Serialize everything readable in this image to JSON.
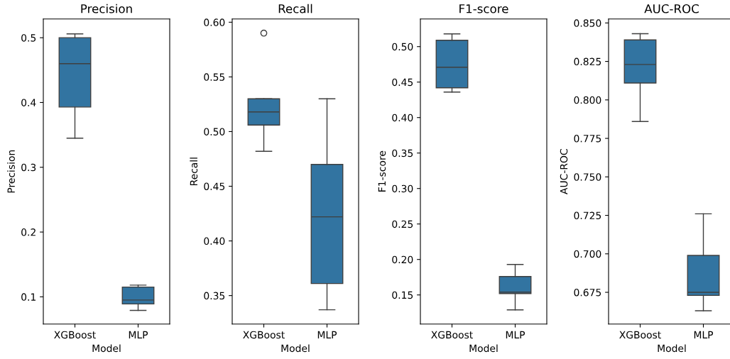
{
  "chart_data": [
    {
      "type": "box",
      "title": "Precision",
      "xlabel": "Model",
      "ylabel": "Precision",
      "categories": [
        "XGBoost",
        "MLP"
      ],
      "color": "#3274a1",
      "boxes": [
        {
          "low": 0.345,
          "q1": 0.393,
          "median": 0.46,
          "q3": 0.5,
          "high": 0.506
        },
        {
          "low": 0.079,
          "q1": 0.089,
          "median": 0.095,
          "q3": 0.115,
          "high": 0.118
        }
      ],
      "ylim": [
        0.058,
        0.529
      ],
      "yticks": [
        0.1,
        0.2,
        0.3,
        0.4,
        0.5
      ]
    },
    {
      "type": "box",
      "title": "Recall",
      "xlabel": "Model",
      "ylabel": "Recall",
      "categories": [
        "XGBoost",
        "MLP"
      ],
      "color": "#3274a1",
      "boxes": [
        {
          "low": 0.482,
          "q1": 0.506,
          "median": 0.518,
          "q3": 0.53,
          "high": 0.53,
          "outliers": [
            0.59
          ]
        },
        {
          "low": 0.337,
          "q1": 0.361,
          "median": 0.422,
          "q3": 0.47,
          "high": 0.53
        }
      ],
      "ylim": [
        0.324,
        0.603
      ],
      "yticks": [
        0.35,
        {
          "value": 0.4,
          "label": "0.40"
        },
        0.45,
        {
          "value": 0.5,
          "label": "0.50"
        },
        0.55,
        {
          "value": 0.6,
          "label": "0.60"
        }
      ]
    },
    {
      "type": "box",
      "title": "F1-score",
      "xlabel": "Model",
      "ylabel": "F1-score",
      "categories": [
        "XGBoost",
        "MLP"
      ],
      "color": "#3274a1",
      "boxes": [
        {
          "low": 0.436,
          "q1": 0.442,
          "median": 0.471,
          "q3": 0.509,
          "high": 0.518
        },
        {
          "low": 0.129,
          "q1": 0.152,
          "median": 0.154,
          "q3": 0.176,
          "high": 0.193
        }
      ],
      "ylim": [
        0.109,
        0.539
      ],
      "yticks": [
        0.15,
        {
          "value": 0.2,
          "label": "0.20"
        },
        0.25,
        {
          "value": 0.3,
          "label": "0.30"
        },
        0.35,
        {
          "value": 0.4,
          "label": "0.40"
        },
        0.45,
        {
          "value": 0.5,
          "label": "0.50"
        }
      ]
    },
    {
      "type": "box",
      "title": "AUC-ROC",
      "xlabel": "Model",
      "ylabel": "AUC-ROC",
      "categories": [
        "XGBoost",
        "MLP"
      ],
      "color": "#3274a1",
      "boxes": [
        {
          "low": 0.786,
          "q1": 0.811,
          "median": 0.823,
          "q3": 0.839,
          "high": 0.843
        },
        {
          "low": 0.663,
          "q1": 0.673,
          "median": 0.675,
          "q3": 0.699,
          "high": 0.726
        }
      ],
      "ylim": [
        0.6544,
        0.8526
      ],
      "yticks": [
        0.675,
        {
          "value": 0.7,
          "label": "0.700"
        },
        0.725,
        {
          "value": 0.75,
          "label": "0.750"
        },
        0.775,
        {
          "value": 0.8,
          "label": "0.800"
        },
        0.825,
        {
          "value": 0.85,
          "label": "0.850"
        }
      ]
    }
  ]
}
